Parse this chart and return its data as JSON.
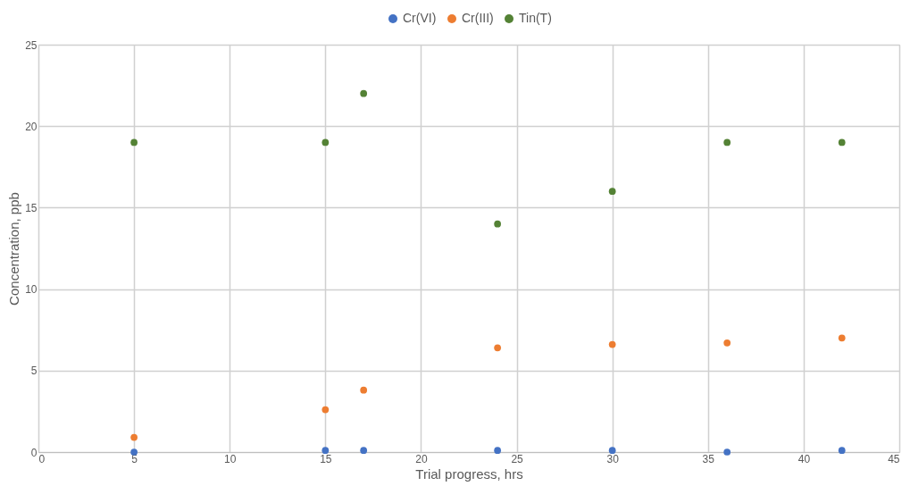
{
  "chart_data": {
    "type": "scatter",
    "xlabel": "Trial progress, hrs",
    "ylabel": "Concentration, ppb",
    "x": [
      5,
      15,
      17,
      24,
      30,
      36,
      42
    ],
    "series": [
      {
        "name": "Cr(VI)",
        "color": "#4472c4",
        "values": [
          0,
          0.1,
          0.1,
          0.1,
          0.1,
          0,
          0.1
        ]
      },
      {
        "name": "Cr(III)",
        "color": "#ed7d31",
        "values": [
          0.9,
          2.6,
          3.8,
          6.4,
          6.6,
          6.7,
          7.0
        ]
      },
      {
        "name": "Tin(T)",
        "color": "#548235",
        "values": [
          19,
          19,
          22,
          14,
          16,
          19,
          19
        ]
      }
    ],
    "xlim": [
      0,
      45
    ],
    "xticks": [
      0,
      5,
      10,
      15,
      20,
      25,
      30,
      35,
      40,
      45
    ],
    "ylim": [
      0,
      25
    ],
    "yticks": [
      0,
      5,
      10,
      15,
      20,
      25
    ],
    "grid": true,
    "legend": "top",
    "marker": "circle"
  }
}
